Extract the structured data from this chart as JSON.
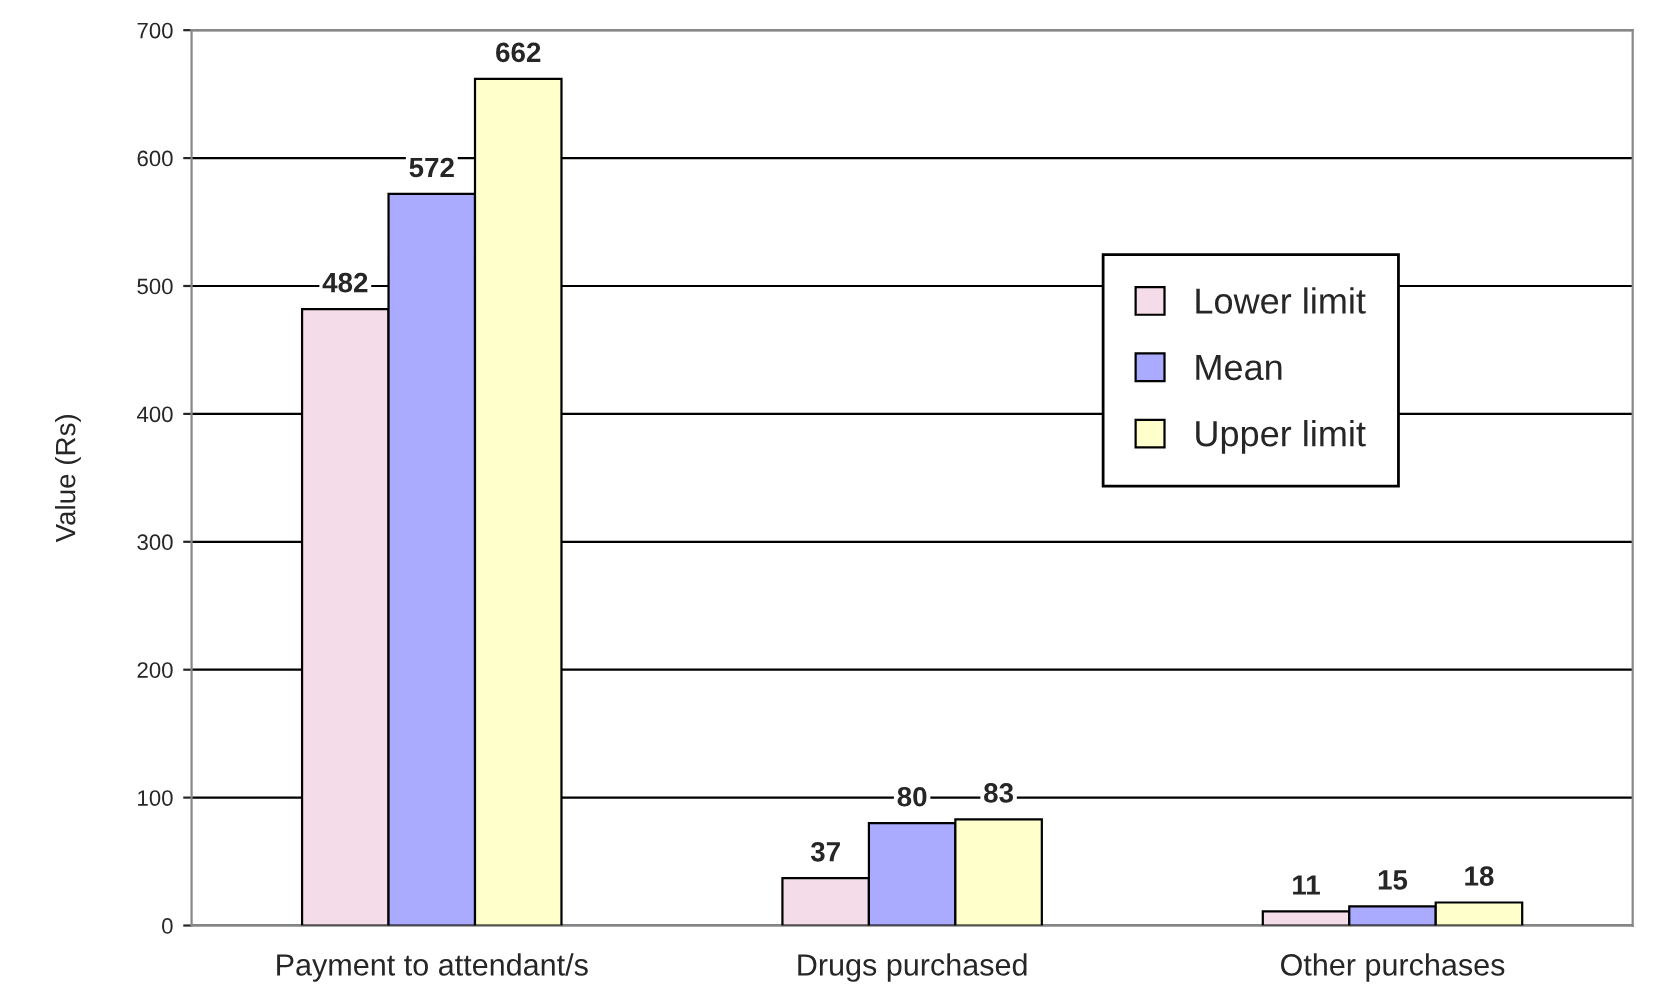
{
  "chart_data": {
    "type": "bar",
    "ylabel": "Value (Rs)",
    "categories": [
      "Payment to attendant/s",
      "Drugs purchased",
      "Other purchases"
    ],
    "series": [
      {
        "name": "Lower limit",
        "color": "#f4dde8",
        "values": [
          482,
          37,
          11
        ]
      },
      {
        "name": "Mean",
        "color": "#aaaaff",
        "values": [
          572,
          80,
          15
        ]
      },
      {
        "name": "Upper limit",
        "color": "#ffffcc",
        "values": [
          662,
          83,
          18
        ]
      }
    ],
    "ylim": [
      0,
      700
    ],
    "yticks": [
      0,
      100,
      200,
      300,
      400,
      500,
      600,
      700
    ],
    "grid": "y",
    "legend": "right",
    "data_labels": true
  }
}
